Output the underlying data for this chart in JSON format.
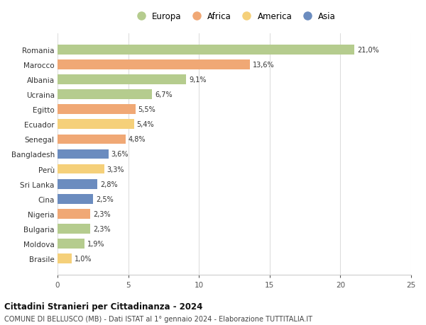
{
  "countries": [
    "Romania",
    "Marocco",
    "Albania",
    "Ucraina",
    "Egitto",
    "Ecuador",
    "Senegal",
    "Bangladesh",
    "Perù",
    "Sri Lanka",
    "Cina",
    "Nigeria",
    "Bulgaria",
    "Moldova",
    "Brasile"
  ],
  "values": [
    21.0,
    13.6,
    9.1,
    6.7,
    5.5,
    5.4,
    4.8,
    3.6,
    3.3,
    2.8,
    2.5,
    2.3,
    2.3,
    1.9,
    1.0
  ],
  "labels": [
    "21,0%",
    "13,6%",
    "9,1%",
    "6,7%",
    "5,5%",
    "5,4%",
    "4,8%",
    "3,6%",
    "3,3%",
    "2,8%",
    "2,5%",
    "2,3%",
    "2,3%",
    "1,9%",
    "1,0%"
  ],
  "continents": [
    "Europa",
    "Africa",
    "Europa",
    "Europa",
    "Africa",
    "America",
    "Africa",
    "Asia",
    "America",
    "Asia",
    "Asia",
    "Africa",
    "Europa",
    "Europa",
    "America"
  ],
  "colors": {
    "Europa": "#b5cc8e",
    "Africa": "#f0a875",
    "America": "#f5d07a",
    "Asia": "#6b8cbf"
  },
  "legend_order": [
    "Europa",
    "Africa",
    "America",
    "Asia"
  ],
  "title": "Cittadini Stranieri per Cittadinanza - 2024",
  "subtitle": "COMUNE DI BELLUSCO (MB) - Dati ISTAT al 1° gennaio 2024 - Elaborazione TUTTITALIA.IT",
  "xlim": [
    0,
    25
  ],
  "xticks": [
    0,
    5,
    10,
    15,
    20,
    25
  ],
  "background_color": "#ffffff",
  "grid_color": "#dddddd",
  "bar_height": 0.65
}
